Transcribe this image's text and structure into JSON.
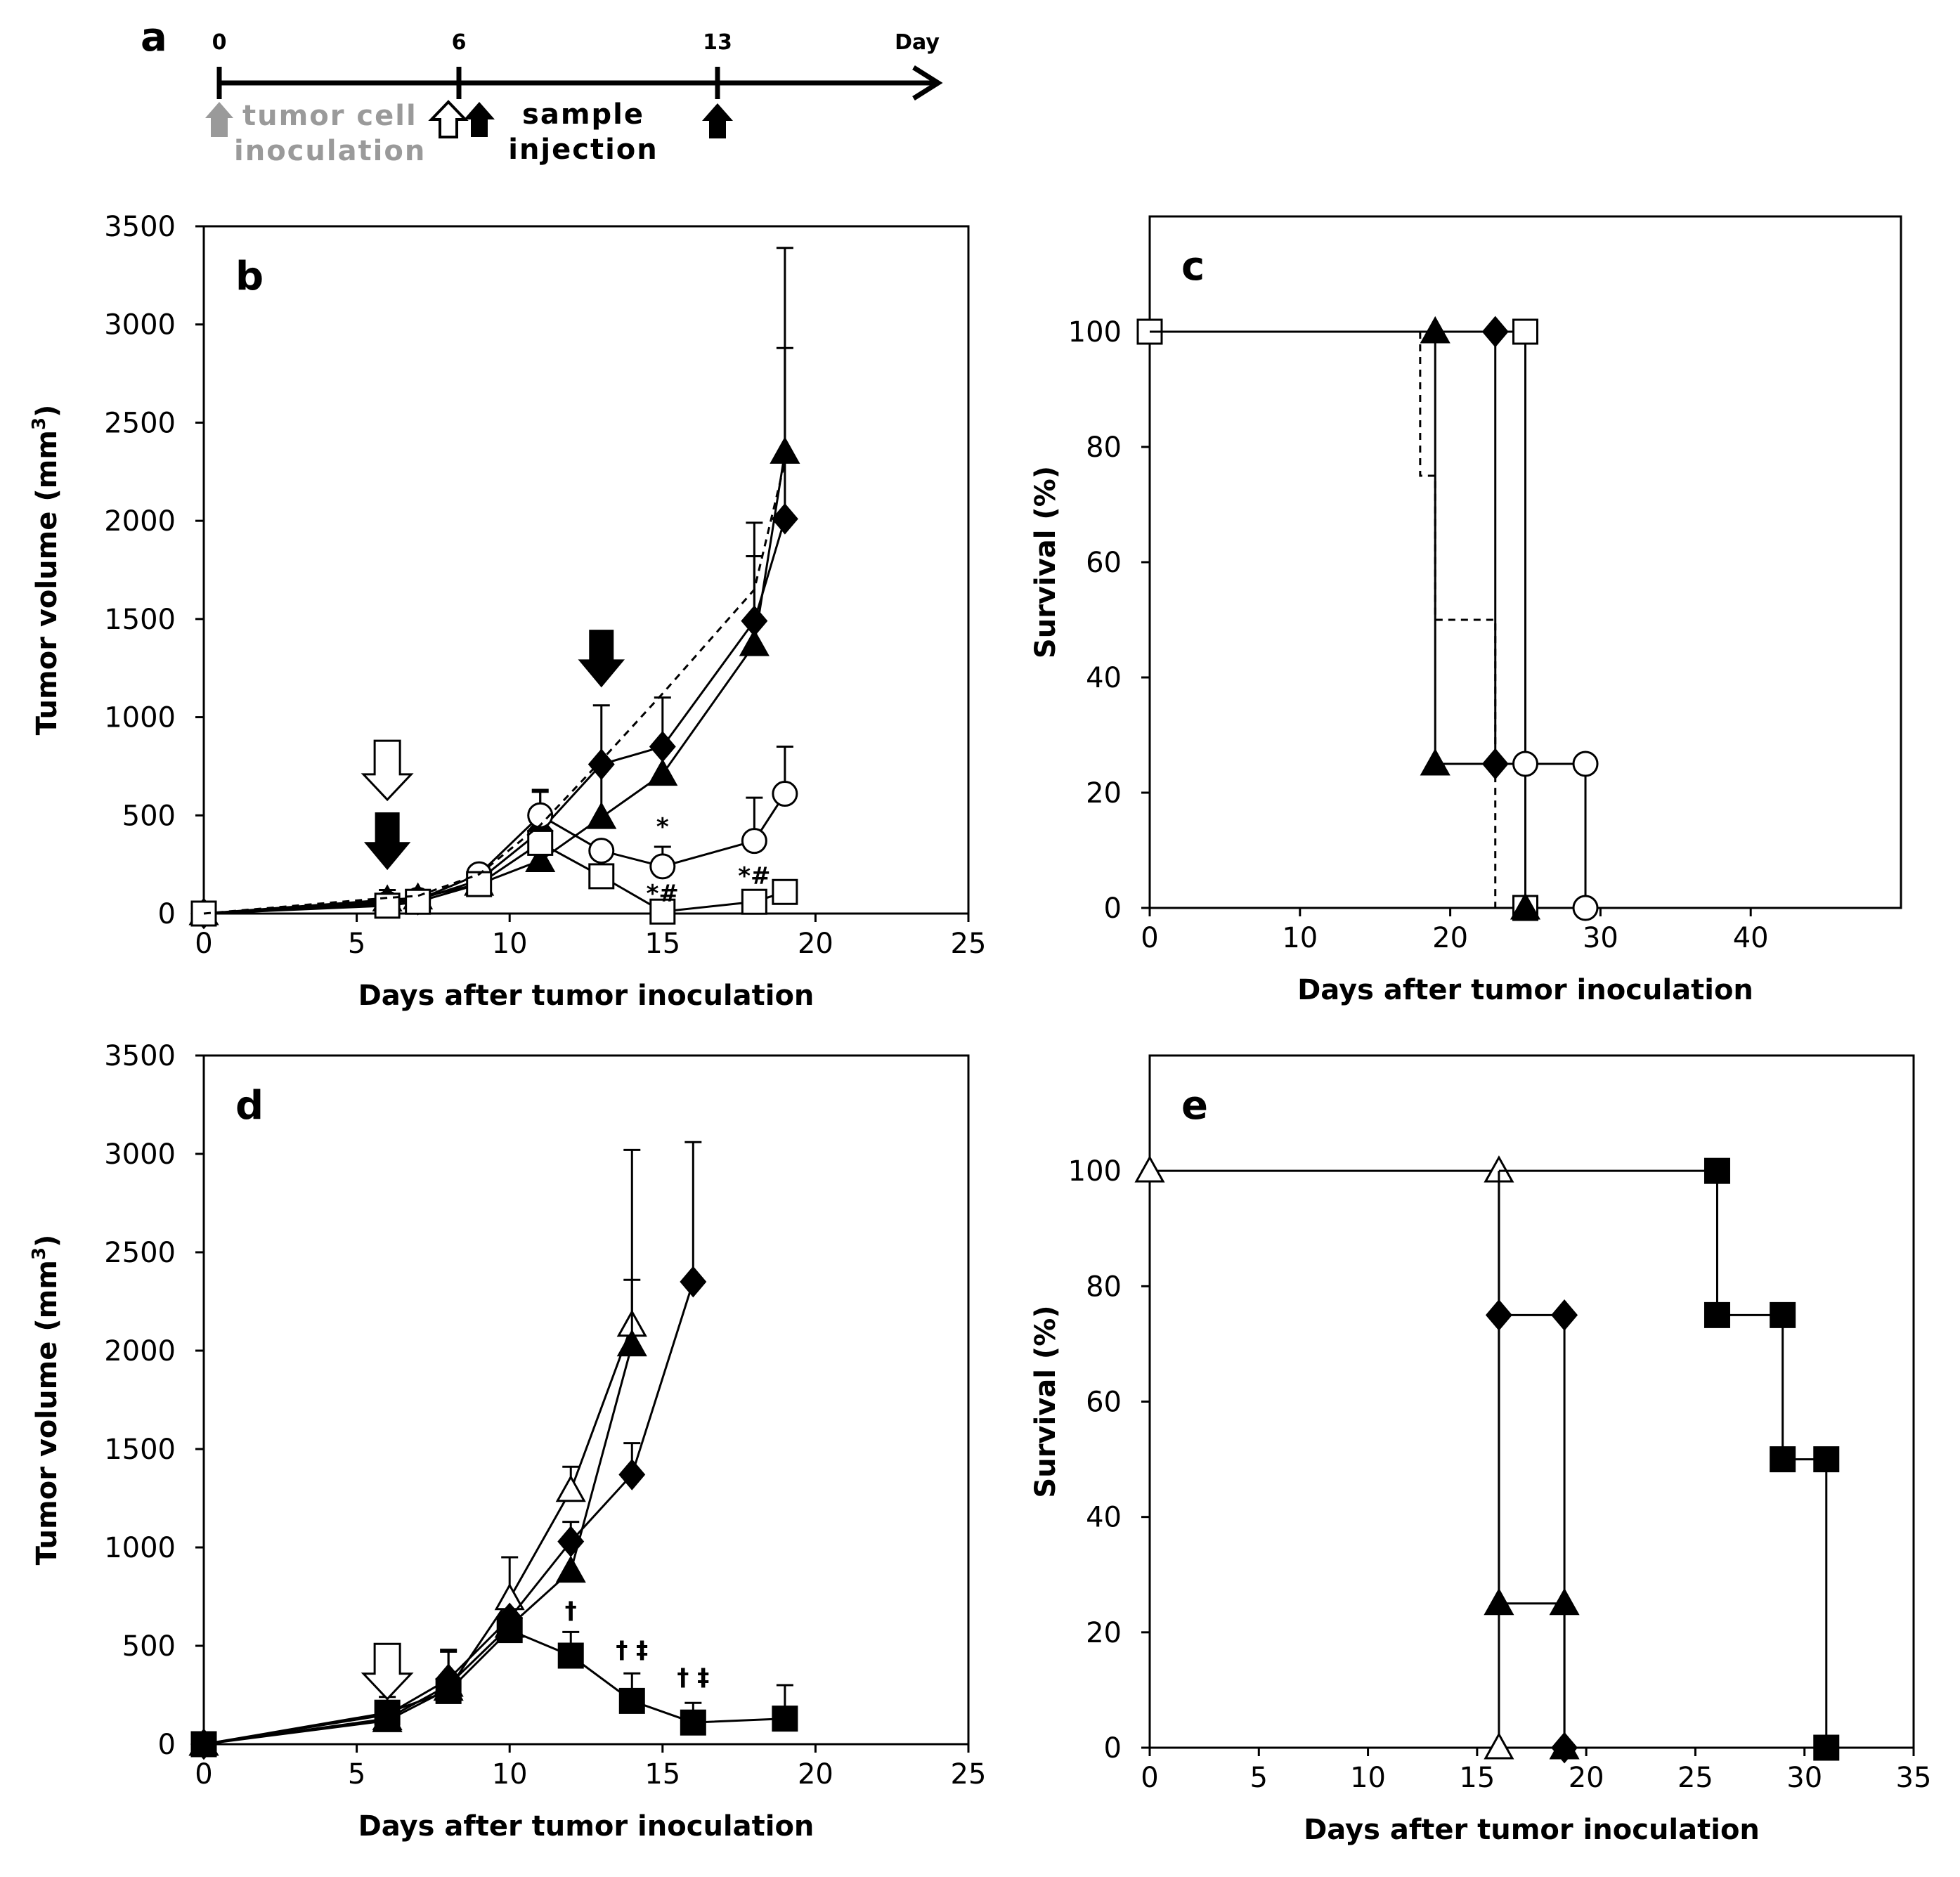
{
  "timeline": {
    "panel_label": "a",
    "ticks": [
      {
        "label": "0",
        "day": 0
      },
      {
        "label": "6",
        "day": 6
      },
      {
        "label": "13",
        "day": 13
      }
    ],
    "end_label": "Day",
    "inoculation_label": [
      "tumor cell",
      "inoculation"
    ],
    "injection_label": [
      "sample",
      "injection"
    ]
  },
  "chart_data": [
    {
      "id": "b",
      "panel_label": "b",
      "type": "line",
      "xlabel": "Days after tumor inoculation",
      "ylabel_main": "Tumor volume (mm",
      "ylabel_sup": "3",
      "ylabel_end": ")",
      "xlim": [
        0,
        25
      ],
      "ylim": [
        0,
        3500
      ],
      "xticks": [
        0,
        5,
        10,
        15,
        20,
        25
      ],
      "yticks": [
        0,
        500,
        1000,
        1500,
        2000,
        2500,
        3000,
        3500
      ],
      "series": [
        {
          "name": "filled-diamond",
          "marker": "diamond",
          "fill": "#000000",
          "dash": false,
          "x": [
            0,
            6,
            7,
            9,
            11,
            13,
            15,
            18,
            19
          ],
          "y": [
            0,
            60,
            70,
            170,
            420,
            760,
            850,
            1490,
            2010
          ],
          "err": [
            0,
            0,
            0,
            0,
            200,
            300,
            250,
            500,
            870
          ]
        },
        {
          "name": "filled-triangle",
          "marker": "triangle",
          "fill": "#000000",
          "dash": false,
          "x": [
            0,
            6,
            7,
            9,
            11,
            13,
            15,
            18,
            19
          ],
          "y": [
            0,
            70,
            80,
            150,
            270,
            490,
            710,
            1370,
            2350
          ],
          "err": [
            0,
            50,
            40,
            0,
            0,
            250,
            0,
            450,
            1040
          ]
        },
        {
          "name": "open-circle",
          "marker": "circle",
          "fill": "#ffffff",
          "dash": false,
          "x": [
            0,
            6,
            7,
            9,
            11,
            13,
            15,
            18,
            19
          ],
          "y": [
            0,
            50,
            70,
            200,
            500,
            320,
            240,
            370,
            610
          ],
          "err": [
            0,
            0,
            0,
            0,
            130,
            0,
            100,
            220,
            240
          ]
        },
        {
          "name": "open-square",
          "marker": "square",
          "fill": "#ffffff",
          "dash": false,
          "x": [
            0,
            6,
            7,
            9,
            11,
            13,
            15,
            18,
            19
          ],
          "y": [
            0,
            40,
            60,
            150,
            360,
            190,
            10,
            60,
            110
          ],
          "err": [
            0,
            0,
            0,
            0,
            0,
            0,
            0,
            0,
            30
          ]
        },
        {
          "name": "control-dashed",
          "marker": "none",
          "fill": "none",
          "dash": true,
          "x": [
            0,
            6,
            7,
            9,
            11,
            13,
            15,
            18,
            19
          ],
          "y": [
            0,
            80,
            90,
            200,
            450,
            780,
            1120,
            1650,
            2300
          ],
          "err": [
            0,
            0,
            0,
            0,
            0,
            0,
            0,
            0,
            0
          ]
        }
      ],
      "arrows": [
        {
          "type": "open",
          "x": 6,
          "y_top": 880,
          "y_bottom": 580
        },
        {
          "type": "filled",
          "x": 6,
          "y_top": 510,
          "y_bottom": 230
        },
        {
          "type": "filled",
          "x": 13,
          "y_top": 1440,
          "y_bottom": 1160
        }
      ],
      "annotations": [
        {
          "text": "*",
          "x": 15,
          "y": 400
        },
        {
          "text": "*#",
          "x": 15,
          "y": 60
        },
        {
          "text": "*#",
          "x": 18,
          "y": 150
        }
      ]
    },
    {
      "id": "c",
      "panel_label": "c",
      "type": "line",
      "xlabel": "Days after tumor inoculation",
      "ylabel": "Survival (%)",
      "xlim": [
        0,
        50
      ],
      "ylim": [
        0,
        120
      ],
      "xticks": [
        0,
        10,
        20,
        30,
        40
      ],
      "yticks": [
        0,
        20,
        40,
        60,
        80,
        100
      ],
      "series": [
        {
          "name": "open-square",
          "marker": "square",
          "fill": "#ffffff",
          "dash": false,
          "x": [
            0,
            25,
            25
          ],
          "y": [
            100,
            100,
            0
          ],
          "markers_at": [
            [
              0,
              100
            ],
            [
              25,
              100
            ],
            [
              25,
              0
            ]
          ]
        },
        {
          "name": "filled-triangle",
          "marker": "triangle",
          "fill": "#000000",
          "dash": false,
          "x": [
            0,
            19,
            19,
            25,
            25
          ],
          "y": [
            100,
            100,
            25,
            25,
            0
          ],
          "markers_at": [
            [
              19,
              100
            ],
            [
              19,
              25
            ],
            [
              25,
              0
            ]
          ]
        },
        {
          "name": "filled-diamond",
          "marker": "diamond",
          "fill": "#000000",
          "dash": false,
          "x": [
            0,
            23,
            23,
            25,
            25
          ],
          "y": [
            100,
            100,
            25,
            25,
            0
          ],
          "markers_at": [
            [
              23,
              100
            ],
            [
              23,
              25
            ]
          ]
        },
        {
          "name": "open-circle",
          "marker": "circle",
          "fill": "#ffffff",
          "dash": false,
          "x": [
            23,
            25,
            29,
            29
          ],
          "y": [
            25,
            25,
            25,
            0
          ],
          "markers_at": [
            [
              25,
              25
            ],
            [
              29,
              25
            ],
            [
              29,
              0
            ]
          ]
        },
        {
          "name": "control-dashed",
          "marker": "none",
          "fill": "none",
          "dash": true,
          "x": [
            18,
            18,
            19,
            19,
            23,
            23
          ],
          "y": [
            100,
            75,
            75,
            50,
            50,
            0
          ],
          "markers_at": []
        }
      ]
    },
    {
      "id": "d",
      "panel_label": "d",
      "type": "line",
      "xlabel": "Days after tumor inoculation",
      "ylabel_main": "Tumor volume (mm",
      "ylabel_sup": "3",
      "ylabel_end": ")",
      "xlim": [
        0,
        25
      ],
      "ylim": [
        0,
        3500
      ],
      "xticks": [
        0,
        5,
        10,
        15,
        20,
        25
      ],
      "yticks": [
        0,
        500,
        1000,
        1500,
        2000,
        2500,
        3000,
        3500
      ],
      "series": [
        {
          "name": "open-triangle",
          "marker": "triangle",
          "fill": "#ffffff",
          "dash": false,
          "x": [
            0,
            6,
            8,
            10,
            12,
            14
          ],
          "y": [
            0,
            120,
            280,
            740,
            1290,
            2130
          ],
          "err": [
            0,
            0,
            0,
            210,
            120,
            890
          ]
        },
        {
          "name": "filled-triangle",
          "marker": "triangle",
          "fill": "#000000",
          "dash": false,
          "x": [
            0,
            6,
            8,
            10,
            12,
            14
          ],
          "y": [
            0,
            130,
            300,
            600,
            880,
            2030
          ],
          "err": [
            0,
            0,
            0,
            0,
            0,
            330
          ]
        },
        {
          "name": "filled-diamond",
          "marker": "diamond",
          "fill": "#000000",
          "dash": false,
          "x": [
            0,
            6,
            8,
            10,
            12,
            14,
            16
          ],
          "y": [
            0,
            150,
            330,
            640,
            1030,
            1370,
            2350
          ],
          "err": [
            0,
            0,
            150,
            0,
            100,
            160,
            710
          ]
        },
        {
          "name": "filled-square",
          "marker": "square",
          "fill": "#000000",
          "dash": false,
          "x": [
            0,
            6,
            8,
            10,
            12,
            14,
            16,
            19
          ],
          "y": [
            0,
            160,
            270,
            580,
            450,
            220,
            110,
            130
          ],
          "err": [
            0,
            80,
            200,
            0,
            120,
            140,
            100,
            170
          ]
        }
      ],
      "arrows": [
        {
          "type": "open",
          "x": 6,
          "y_top": 510,
          "y_bottom": 230
        }
      ],
      "annotations": [
        {
          "text": "†",
          "x": 12,
          "y": 640
        },
        {
          "text": "† ‡",
          "x": 14,
          "y": 440
        },
        {
          "text": "† ‡",
          "x": 16,
          "y": 300
        }
      ]
    },
    {
      "id": "e",
      "panel_label": "e",
      "type": "line",
      "xlabel": "Days after tumor inoculation",
      "ylabel": "Survival (%)",
      "xlim": [
        0,
        35
      ],
      "ylim": [
        0,
        120
      ],
      "xticks": [
        0,
        5,
        10,
        15,
        20,
        25,
        30,
        35
      ],
      "yticks": [
        0,
        20,
        40,
        60,
        80,
        100
      ],
      "series": [
        {
          "name": "open-triangle",
          "marker": "triangle",
          "fill": "#ffffff",
          "dash": false,
          "x": [
            0,
            16,
            16
          ],
          "y": [
            100,
            100,
            0
          ],
          "markers_at": [
            [
              0,
              100
            ],
            [
              16,
              100
            ],
            [
              16,
              0
            ]
          ]
        },
        {
          "name": "filled-diamond",
          "marker": "diamond",
          "fill": "#000000",
          "dash": false,
          "x": [
            16,
            16,
            19,
            19
          ],
          "y": [
            100,
            75,
            75,
            0
          ],
          "markers_at": [
            [
              16,
              75
            ],
            [
              19,
              75
            ],
            [
              19,
              0
            ]
          ]
        },
        {
          "name": "filled-triangle",
          "marker": "triangle",
          "fill": "#000000",
          "dash": false,
          "x": [
            16,
            16,
            19,
            19
          ],
          "y": [
            75,
            25,
            25,
            0
          ],
          "markers_at": [
            [
              16,
              25
            ],
            [
              19,
              25
            ],
            [
              19,
              0
            ]
          ]
        },
        {
          "name": "filled-square",
          "marker": "square",
          "fill": "#000000",
          "dash": false,
          "x": [
            16,
            26,
            26,
            29,
            29,
            31,
            31
          ],
          "y": [
            100,
            100,
            75,
            75,
            50,
            50,
            0
          ],
          "markers_at": [
            [
              26,
              100
            ],
            [
              26,
              75
            ],
            [
              29,
              75
            ],
            [
              29,
              50
            ],
            [
              31,
              50
            ],
            [
              31,
              0
            ]
          ]
        }
      ]
    }
  ]
}
